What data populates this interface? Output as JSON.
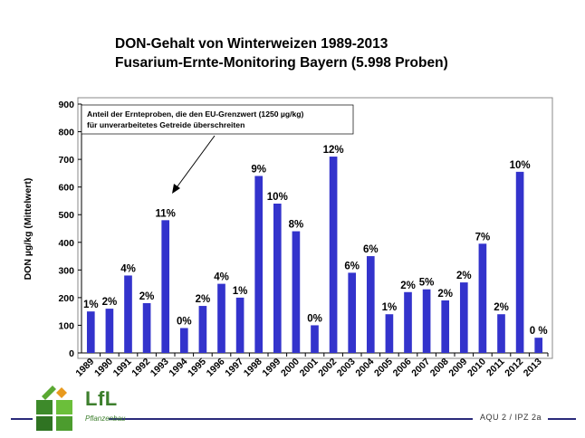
{
  "title": {
    "line1": "DON-Gehalt von Winterweizen 1989-2013",
    "line2": "Fusarium-Ernte-Monitoring Bayern (5.998 Proben)"
  },
  "chart_data": {
    "type": "bar",
    "title": "DON-Gehalt von Winterweizen 1989-2013",
    "subtitle": "Fusarium-Ernte-Monitoring Bayern (5.998 Proben)",
    "ylabel": "DON µg/kg (Mittelwert)",
    "xlabel": "",
    "ylim": [
      0,
      900
    ],
    "yticks": [
      0,
      100,
      200,
      300,
      400,
      500,
      600,
      700,
      800,
      900
    ],
    "categories": [
      "1989",
      "1990",
      "1991",
      "1992",
      "1993",
      "1994",
      "1995",
      "1996",
      "1997",
      "1998",
      "1999",
      "2000",
      "2001",
      "2002",
      "2003",
      "2004",
      "2005",
      "2006",
      "2007",
      "2008",
      "2009",
      "2010",
      "2011",
      "2012",
      "2013"
    ],
    "values": [
      150,
      160,
      280,
      180,
      480,
      90,
      170,
      250,
      200,
      640,
      540,
      440,
      100,
      710,
      290,
      350,
      140,
      220,
      230,
      190,
      255,
      395,
      140,
      655,
      55
    ],
    "labels": [
      "1%",
      "2%",
      "4%",
      "2%",
      "11%",
      "0%",
      "2%",
      "4%",
      "1%",
      "9%",
      "10%",
      "8%",
      "0%",
      "12%",
      "6%",
      "6%",
      "1%",
      "2%",
      "5%",
      "2%",
      "2%",
      "7%",
      "2%",
      "10%",
      "0 %"
    ],
    "bar_color": "#3333cc",
    "annotation": {
      "line1": "Anteil der Ernteproben, die den EU-Grenzwert (1250 µg/kg)",
      "line2": "für unverarbeitetes Getreide überschreiten"
    }
  },
  "footer": {
    "ref": "AQU 2 / IPZ 2a",
    "logo_text": "LfL",
    "logo_sub": "Pflanzenbau",
    "line_color": "#2a2a7a"
  }
}
